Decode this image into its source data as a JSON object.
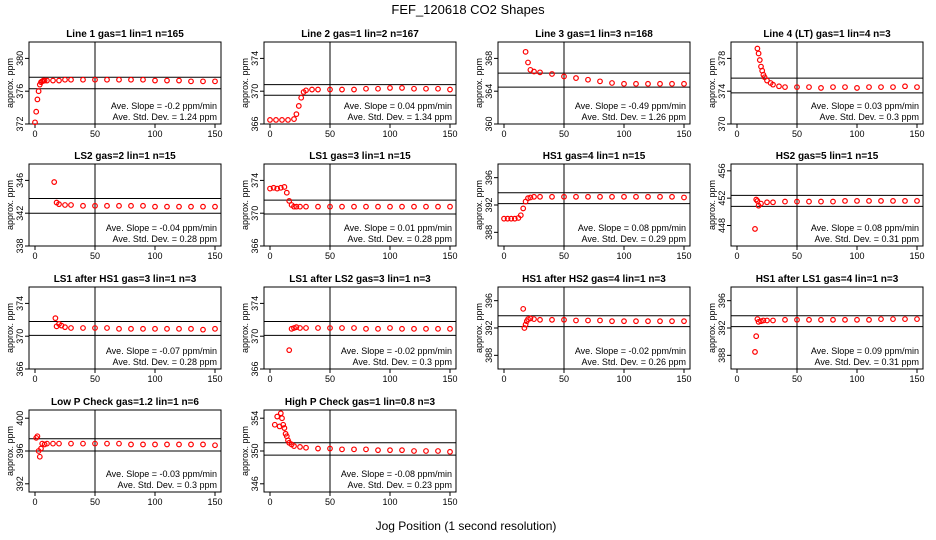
{
  "figure": {
    "title": "FEF_120618  CO2 Shapes",
    "xlabel": "Jog Position (1 second resolution)"
  },
  "style": {
    "point_color": "#ff0000",
    "line_color": "#000000"
  },
  "chart_data": [
    {
      "type": "scatter",
      "title": "Line 1 gas=1 lin=1 n=165",
      "ylabel": "approx. ppm",
      "xlim": [
        -5,
        155
      ],
      "ylim": [
        372,
        382
      ],
      "xticks": [
        0,
        50,
        100,
        150
      ],
      "yticks": [
        372,
        376,
        380
      ],
      "hlines": [
        377.7,
        376.3
      ],
      "vline": 50,
      "slope_text": "Ave. Slope =  -0.2  ppm/min",
      "std_text": "Ave. Std. Dev. =  1.24  ppm",
      "x": [
        0,
        1,
        2,
        3,
        4,
        5,
        6,
        7,
        8,
        10,
        15,
        20,
        25,
        30,
        40,
        50,
        60,
        70,
        80,
        90,
        100,
        110,
        120,
        130,
        140,
        150
      ],
      "y": [
        372.2,
        373.5,
        375.0,
        376.0,
        376.8,
        377.1,
        377.2,
        377.3,
        377.3,
        377.3,
        377.3,
        377.3,
        377.4,
        377.4,
        377.4,
        377.4,
        377.4,
        377.4,
        377.4,
        377.4,
        377.3,
        377.3,
        377.3,
        377.2,
        377.2,
        377.2
      ]
    },
    {
      "type": "scatter",
      "title": "Line 2 gas=1 lin=2 n=167",
      "ylabel": "approx. ppm",
      "xlim": [
        -5,
        155
      ],
      "ylim": [
        366,
        376
      ],
      "xticks": [
        0,
        50,
        100,
        150
      ],
      "yticks": [
        366,
        370,
        374
      ],
      "hlines": [
        370.8,
        369.5
      ],
      "vline": 50,
      "slope_text": "Ave. Slope =  0.04  ppm/min",
      "std_text": "Ave. Std. Dev. =  1.34  ppm",
      "x": [
        0,
        5,
        10,
        15,
        20,
        22,
        24,
        26,
        28,
        30,
        35,
        40,
        50,
        60,
        70,
        80,
        90,
        100,
        110,
        120,
        130,
        140,
        150
      ],
      "y": [
        366.5,
        366.5,
        366.5,
        366.5,
        366.6,
        367.2,
        368.2,
        369.2,
        369.9,
        370.1,
        370.2,
        370.2,
        370.2,
        370.2,
        370.2,
        370.3,
        370.3,
        370.4,
        370.4,
        370.3,
        370.3,
        370.3,
        370.2
      ]
    },
    {
      "type": "scatter",
      "title": "Line 3 gas=1 lin=3 n=168",
      "ylabel": "approx. ppm",
      "xlim": [
        -5,
        155
      ],
      "ylim": [
        360,
        370
      ],
      "xticks": [
        0,
        50,
        100,
        150
      ],
      "yticks": [
        360,
        364,
        368
      ],
      "hlines": [
        366.2,
        364.5
      ],
      "vline": 50,
      "slope_text": "Ave. Slope =  -0.49  ppm/min",
      "std_text": "Ave. Std. Dev. =  1.26  ppm",
      "x": [
        18,
        20,
        22,
        25,
        30,
        40,
        50,
        60,
        70,
        80,
        90,
        100,
        110,
        120,
        130,
        140,
        150
      ],
      "y": [
        368.8,
        367.5,
        366.6,
        366.4,
        366.3,
        366.1,
        365.8,
        365.6,
        365.4,
        365.2,
        365.0,
        364.9,
        364.9,
        364.9,
        364.9,
        364.9,
        364.9
      ]
    },
    {
      "type": "scatter",
      "title": "Line 4 (LT) gas=1 lin=4 n=3",
      "ylabel": "approx. ppm",
      "xlim": [
        -5,
        155
      ],
      "ylim": [
        370,
        380
      ],
      "xticks": [
        0,
        50,
        100,
        150
      ],
      "yticks": [
        370,
        374,
        378
      ],
      "hlines": [
        375.6,
        373.8
      ],
      "vline": 50,
      "slope_text": "Ave. Slope =  0.03  ppm/min",
      "std_text": "Ave. Std. Dev. =  0.3  ppm",
      "x": [
        17,
        18,
        19,
        20,
        21,
        22,
        23,
        25,
        28,
        30,
        35,
        40,
        50,
        60,
        70,
        80,
        90,
        100,
        110,
        120,
        130,
        140,
        150
      ],
      "y": [
        379.2,
        378.6,
        377.8,
        377.0,
        376.5,
        376.0,
        375.7,
        375.3,
        375.0,
        374.8,
        374.6,
        374.5,
        374.5,
        374.5,
        374.4,
        374.5,
        374.5,
        374.4,
        374.5,
        374.5,
        374.5,
        374.6,
        374.5
      ]
    },
    {
      "type": "scatter",
      "title": "LS2 gas=2 lin=1 n=15",
      "ylabel": "approx. ppm",
      "xlim": [
        -5,
        155
      ],
      "ylim": [
        338,
        348
      ],
      "xticks": [
        0,
        50,
        100,
        150
      ],
      "yticks": [
        338,
        342,
        346
      ],
      "hlines": [
        343.8,
        342.0
      ],
      "vline": 50,
      "slope_text": "Ave. Slope =  -0.04  ppm/min",
      "std_text": "Ave. Std. Dev. =  0.28  ppm",
      "x": [
        16,
        18,
        20,
        25,
        30,
        40,
        50,
        60,
        70,
        80,
        90,
        100,
        110,
        120,
        130,
        140,
        150
      ],
      "y": [
        345.8,
        343.3,
        343.1,
        343.0,
        343.0,
        342.9,
        342.9,
        342.9,
        342.9,
        342.9,
        342.9,
        342.8,
        342.8,
        342.8,
        342.8,
        342.8,
        342.8
      ]
    },
    {
      "type": "scatter",
      "title": "LS1 gas=3 lin=1 n=15",
      "ylabel": "approx. ppm",
      "xlim": [
        -5,
        155
      ],
      "ylim": [
        366,
        376
      ],
      "xticks": [
        0,
        50,
        100,
        150
      ],
      "yticks": [
        366,
        370,
        374
      ],
      "hlines": [
        371.6,
        369.9
      ],
      "vline": 50,
      "slope_text": "Ave. Slope =  0.01  ppm/min",
      "std_text": "Ave. Std. Dev. =  0.28  ppm",
      "x": [
        0,
        3,
        6,
        9,
        12,
        14,
        16,
        18,
        20,
        22,
        25,
        30,
        40,
        50,
        60,
        70,
        80,
        90,
        100,
        110,
        120,
        130,
        140,
        150
      ],
      "y": [
        373.0,
        373.1,
        373.0,
        373.1,
        373.2,
        372.5,
        371.5,
        371.0,
        370.8,
        370.8,
        370.8,
        370.8,
        370.8,
        370.8,
        370.8,
        370.8,
        370.8,
        370.8,
        370.8,
        370.8,
        370.8,
        370.8,
        370.8,
        370.8
      ]
    },
    {
      "type": "scatter",
      "title": "HS1 gas=4 lin=1 n=15",
      "ylabel": "approx. ppm",
      "xlim": [
        -5,
        155
      ],
      "ylim": [
        386,
        398
      ],
      "xticks": [
        0,
        50,
        100,
        150
      ],
      "yticks": [
        388,
        392,
        396
      ],
      "hlines": [
        393.8,
        392.2
      ],
      "vline": 50,
      "slope_text": "Ave. Slope =  0.08  ppm/min",
      "std_text": "Ave. Std. Dev. =  0.29  ppm",
      "x": [
        0,
        3,
        6,
        9,
        12,
        14,
        16,
        18,
        20,
        22,
        25,
        30,
        40,
        50,
        60,
        70,
        80,
        90,
        100,
        110,
        120,
        130,
        140,
        150
      ],
      "y": [
        390.0,
        390.0,
        390.0,
        390.0,
        390.1,
        390.5,
        391.5,
        392.5,
        393.0,
        393.1,
        393.2,
        393.2,
        393.2,
        393.2,
        393.2,
        393.2,
        393.2,
        393.2,
        393.2,
        393.2,
        393.2,
        393.2,
        393.2,
        393.1
      ]
    },
    {
      "type": "scatter",
      "title": "HS2 gas=5 lin=1 n=15",
      "ylabel": "approx. ppm",
      "xlim": [
        -5,
        155
      ],
      "ylim": [
        445,
        457
      ],
      "xticks": [
        0,
        50,
        100,
        150
      ],
      "yticks": [
        448,
        452,
        456
      ],
      "hlines": [
        452.4,
        450.8
      ],
      "vline": 50,
      "slope_text": "Ave. Slope =  0.08  ppm/min",
      "std_text": "Ave. Std. Dev. =  0.31  ppm",
      "x": [
        15,
        16,
        17,
        18,
        20,
        25,
        30,
        40,
        50,
        60,
        70,
        80,
        90,
        100,
        110,
        120,
        130,
        140,
        150
      ],
      "y": [
        447.5,
        451.8,
        451.6,
        450.9,
        451.2,
        451.4,
        451.4,
        451.5,
        451.5,
        451.5,
        451.5,
        451.5,
        451.6,
        451.6,
        451.6,
        451.6,
        451.6,
        451.6,
        451.6
      ]
    },
    {
      "type": "scatter",
      "title": "LS1 after HS1 gas=3 lin=1 n=3",
      "ylabel": "approx. ppm",
      "xlim": [
        -5,
        155
      ],
      "ylim": [
        366,
        376
      ],
      "xticks": [
        0,
        50,
        100,
        150
      ],
      "yticks": [
        366,
        370,
        374
      ],
      "hlines": [
        371.8,
        370.1
      ],
      "vline": 50,
      "slope_text": "Ave. Slope =  -0.07  ppm/min",
      "std_text": "Ave. Std. Dev. =  0.28  ppm",
      "x": [
        17,
        18,
        20,
        22,
        25,
        30,
        40,
        50,
        60,
        70,
        80,
        90,
        100,
        110,
        120,
        130,
        140,
        150
      ],
      "y": [
        372.2,
        371.2,
        371.5,
        371.3,
        371.1,
        371.0,
        371.0,
        371.0,
        371.0,
        370.9,
        370.9,
        370.9,
        370.9,
        370.9,
        370.9,
        370.9,
        370.8,
        370.9
      ]
    },
    {
      "type": "scatter",
      "title": "LS1 after LS2 gas=3 lin=1 n=3",
      "ylabel": "approx. ppm",
      "xlim": [
        -5,
        155
      ],
      "ylim": [
        366,
        376
      ],
      "xticks": [
        0,
        50,
        100,
        150
      ],
      "yticks": [
        366,
        370,
        374
      ],
      "hlines": [
        371.8,
        370.1
      ],
      "vline": 50,
      "slope_text": "Ave. Slope =  -0.02  ppm/min",
      "std_text": "Ave. Std. Dev. =  0.3  ppm",
      "x": [
        16,
        18,
        20,
        22,
        25,
        30,
        40,
        50,
        60,
        70,
        80,
        90,
        100,
        110,
        120,
        130,
        140,
        150
      ],
      "y": [
        368.3,
        370.9,
        371.0,
        371.1,
        371.0,
        371.0,
        371.0,
        371.0,
        371.0,
        371.0,
        370.9,
        370.9,
        371.0,
        370.9,
        370.9,
        370.9,
        370.9,
        370.9
      ]
    },
    {
      "type": "scatter",
      "title": "HS1 after HS2 gas=4 lin=1 n=3",
      "ylabel": "approx. ppm",
      "xlim": [
        -5,
        155
      ],
      "ylim": [
        386,
        398
      ],
      "xticks": [
        0,
        50,
        100,
        150
      ],
      "yticks": [
        388,
        392,
        396
      ],
      "hlines": [
        393.8,
        392.2
      ],
      "vline": 50,
      "slope_text": "Ave. Slope =  -0.02  ppm/min",
      "std_text": "Ave. Std. Dev. =  0.26  ppm",
      "x": [
        16,
        17,
        18,
        19,
        20,
        22,
        25,
        30,
        40,
        50,
        60,
        70,
        80,
        90,
        100,
        110,
        120,
        130,
        140,
        150
      ],
      "y": [
        394.8,
        392.0,
        392.5,
        393.0,
        393.3,
        393.4,
        393.3,
        393.2,
        393.2,
        393.2,
        393.1,
        393.1,
        393.1,
        393.0,
        393.0,
        393.0,
        393.0,
        393.0,
        393.0,
        393.0
      ]
    },
    {
      "type": "scatter",
      "title": "HS1 after LS1 gas=4 lin=1 n=3",
      "ylabel": "approx. ppm",
      "xlim": [
        -5,
        155
      ],
      "ylim": [
        386,
        398
      ],
      "xticks": [
        0,
        50,
        100,
        150
      ],
      "yticks": [
        388,
        392,
        396
      ],
      "hlines": [
        393.8,
        392.2
      ],
      "vline": 50,
      "slope_text": "Ave. Slope =  0.09  ppm/min",
      "std_text": "Ave. Std. Dev. =  0.31  ppm",
      "x": [
        15,
        16,
        17,
        18,
        20,
        22,
        25,
        30,
        40,
        50,
        60,
        70,
        80,
        90,
        100,
        110,
        120,
        130,
        140,
        150
      ],
      "y": [
        388.5,
        390.8,
        393.3,
        392.9,
        393.0,
        393.1,
        393.1,
        393.1,
        393.2,
        393.2,
        393.2,
        393.2,
        393.2,
        393.2,
        393.2,
        393.2,
        393.3,
        393.3,
        393.3,
        393.3
      ]
    },
    {
      "type": "scatter",
      "title": "Low P Check gas=1.2 lin=1 n=6",
      "ylabel": "approx. ppm",
      "xlim": [
        -5,
        155
      ],
      "ylim": [
        391,
        401
      ],
      "xticks": [
        0,
        50,
        100,
        150
      ],
      "yticks": [
        392,
        396,
        400
      ],
      "hlines": [
        397.5,
        396.0
      ],
      "vline": 50,
      "slope_text": "Ave. Slope =  -0.03  ppm/min",
      "std_text": "Ave. Std. Dev. =  0.3  ppm",
      "x": [
        1,
        2,
        3,
        4,
        5,
        6,
        8,
        10,
        15,
        20,
        30,
        40,
        50,
        60,
        70,
        80,
        90,
        100,
        110,
        120,
        130,
        140,
        150
      ],
      "y": [
        397.6,
        397.8,
        396.0,
        395.3,
        396.3,
        396.9,
        396.8,
        396.9,
        396.9,
        396.9,
        396.9,
        396.9,
        396.9,
        396.9,
        396.9,
        396.8,
        396.8,
        396.8,
        396.8,
        396.8,
        396.8,
        396.8,
        396.7
      ]
    },
    {
      "type": "scatter",
      "title": "High P Check gas=1 lin=0.8 n=3",
      "ylabel": "approx. ppm",
      "xlim": [
        -5,
        155
      ],
      "ylim": [
        345,
        355
      ],
      "xticks": [
        0,
        50,
        100,
        150
      ],
      "yticks": [
        346,
        350,
        354
      ],
      "hlines": [
        351.0,
        349.5
      ],
      "vline": 50,
      "slope_text": "Ave. Slope =  -0.08  ppm/min",
      "std_text": "Ave. Std. Dev. =  0.23  ppm",
      "x": [
        4,
        6,
        8,
        9,
        10,
        11,
        12,
        13,
        14,
        15,
        16,
        18,
        20,
        25,
        30,
        40,
        50,
        60,
        70,
        80,
        90,
        100,
        110,
        120,
        130,
        140,
        150
      ],
      "y": [
        353.2,
        354.2,
        353.0,
        354.6,
        354.0,
        353.2,
        352.8,
        352.1,
        351.8,
        351.3,
        351.0,
        350.8,
        350.6,
        350.5,
        350.4,
        350.3,
        350.3,
        350.2,
        350.2,
        350.2,
        350.1,
        350.1,
        350.1,
        350.0,
        350.0,
        350.0,
        349.9
      ]
    }
  ]
}
